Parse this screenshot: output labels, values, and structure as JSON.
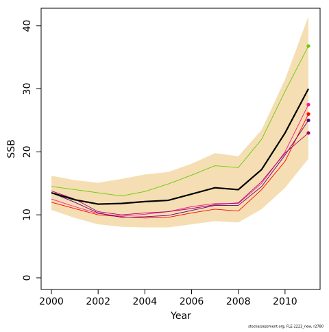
{
  "chart_data": {
    "type": "line",
    "x": [
      2000,
      2001,
      2002,
      2003,
      2004,
      2005,
      2006,
      2007,
      2008,
      2009,
      2010,
      2011
    ],
    "x_label": "Year",
    "y_label": "SSB",
    "xlim": [
      1999.56,
      2011.5
    ],
    "xticks": [
      2000,
      2002,
      2004,
      2006,
      2008,
      2010
    ],
    "ylim": [
      -1.85,
      42.8
    ],
    "yticks": [
      0,
      10,
      20,
      30,
      40
    ],
    "band": {
      "color": "#f5deb3",
      "upper": [
        16.2,
        15.5,
        15.1,
        15.7,
        16.4,
        16.8,
        18.1,
        19.8,
        19.3,
        23.5,
        31.5,
        41.5
      ],
      "lower": [
        10.8,
        9.5,
        8.5,
        8.1,
        8.0,
        8.0,
        8.5,
        9.0,
        8.8,
        10.9,
        14.3,
        18.9
      ]
    },
    "series": [
      {
        "color": "#66cc00",
        "end_marker": true,
        "values": [
          14.5,
          14.0,
          13.5,
          13.0,
          13.7,
          14.9,
          16.3,
          17.8,
          17.5,
          22.0,
          29.6,
          36.8
        ]
      },
      {
        "color": "#ff0000",
        "end_marker": true,
        "values": [
          12.0,
          11.0,
          10.0,
          9.7,
          9.5,
          9.6,
          10.3,
          10.9,
          10.6,
          14.0,
          18.5,
          26.0
        ]
      },
      {
        "color": "#ff1493",
        "end_marker": true,
        "values": [
          12.5,
          11.3,
          10.2,
          9.8,
          10.1,
          10.5,
          11.3,
          11.8,
          11.8,
          15.0,
          20.0,
          27.5
        ]
      },
      {
        "color": "#5b0080",
        "end_marker": true,
        "values": [
          13.5,
          12.0,
          10.3,
          9.6,
          9.7,
          9.9,
          10.7,
          11.5,
          11.5,
          14.5,
          19.5,
          25.0
        ]
      },
      {
        "color": "#a0006e",
        "end_marker": true,
        "values": [
          13.8,
          12.5,
          10.5,
          10.0,
          10.3,
          10.5,
          11.0,
          11.6,
          11.9,
          15.3,
          19.8,
          23.0
        ]
      },
      {
        "color": "#000000",
        "width": 2.2,
        "end_marker": false,
        "values": [
          13.5,
          12.4,
          11.7,
          11.8,
          12.1,
          12.3,
          13.3,
          14.3,
          14.0,
          17.2,
          23.0,
          30.0
        ]
      }
    ],
    "footnote": "stockassessment.org, FLE-2223_new, r2780"
  }
}
